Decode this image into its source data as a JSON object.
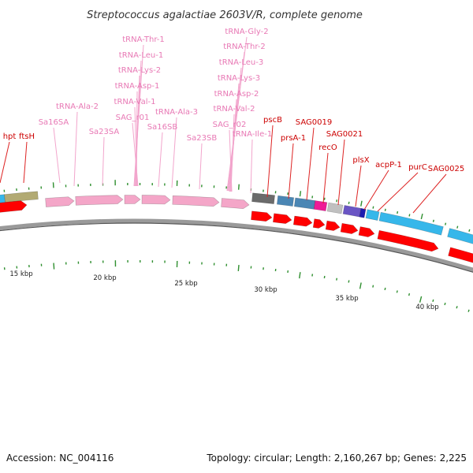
{
  "title": "Streptococcus agalactiae 2603V/R, complete genome",
  "colors": {
    "rna": "#f4a6c8",
    "rna_label": "#e879b5",
    "cds_red": "#ff0000",
    "cds_label": "#cc0000",
    "blue": "#36b7ea",
    "olive": "#b2aa73",
    "gray": "#6b6b6b",
    "steel": "#4a86b4",
    "magenta": "#ee1a96",
    "silver": "#c0c0c0",
    "purple": "#6a55c4",
    "ruler_green": "#2f8f2f",
    "backbone": "#777777"
  },
  "ruler_labels": [
    "15 kbp",
    "20 kbp",
    "25 kbp",
    "30 kbp",
    "35 kbp",
    "40 kbp"
  ],
  "genes": [
    {
      "name": "tRNA-Thr-1",
      "type": "rna"
    },
    {
      "name": "tRNA-Leu-1",
      "type": "rna"
    },
    {
      "name": "tRNA-Lys-2",
      "type": "rna"
    },
    {
      "name": "tRNA-Asp-1",
      "type": "rna"
    },
    {
      "name": "tRNA-Val-1",
      "type": "rna"
    },
    {
      "name": "SAG_r01",
      "type": "rna"
    },
    {
      "name": "tRNA-Ala-2",
      "type": "rna"
    },
    {
      "name": "Sa16SA",
      "type": "rna"
    },
    {
      "name": "Sa23SA",
      "type": "rna"
    },
    {
      "name": "tRNA-Ala-3",
      "type": "rna"
    },
    {
      "name": "Sa16SB",
      "type": "rna"
    },
    {
      "name": "Sa23SB",
      "type": "rna"
    },
    {
      "name": "tRNA-Gly-2",
      "type": "rna"
    },
    {
      "name": "tRNA-Thr-2",
      "type": "rna"
    },
    {
      "name": "tRNA-Leu-3",
      "type": "rna"
    },
    {
      "name": "tRNA-Lys-3",
      "type": "rna"
    },
    {
      "name": "tRNA-Asp-2",
      "type": "rna"
    },
    {
      "name": "tRNA-Val-2",
      "type": "rna"
    },
    {
      "name": "SAG_r02",
      "type": "rna"
    },
    {
      "name": "tRNA-Ile-1",
      "type": "rna"
    },
    {
      "name": "hpt",
      "type": "cds"
    },
    {
      "name": "ftsH",
      "type": "cds"
    },
    {
      "name": "pscB",
      "type": "cds"
    },
    {
      "name": "prsA-1",
      "type": "cds"
    },
    {
      "name": "SAG0019",
      "type": "cds"
    },
    {
      "name": "recO",
      "type": "cds"
    },
    {
      "name": "SAG0021",
      "type": "cds"
    },
    {
      "name": "plsX",
      "type": "cds"
    },
    {
      "name": "acpP-1",
      "type": "cds"
    },
    {
      "name": "purC",
      "type": "cds"
    },
    {
      "name": "SAG0025",
      "type": "cds"
    }
  ],
  "footer": {
    "accession": "Accession: NC_004116",
    "summary": "Topology: circular; Length: 2,160,267 bp; Genes: 2,225"
  }
}
